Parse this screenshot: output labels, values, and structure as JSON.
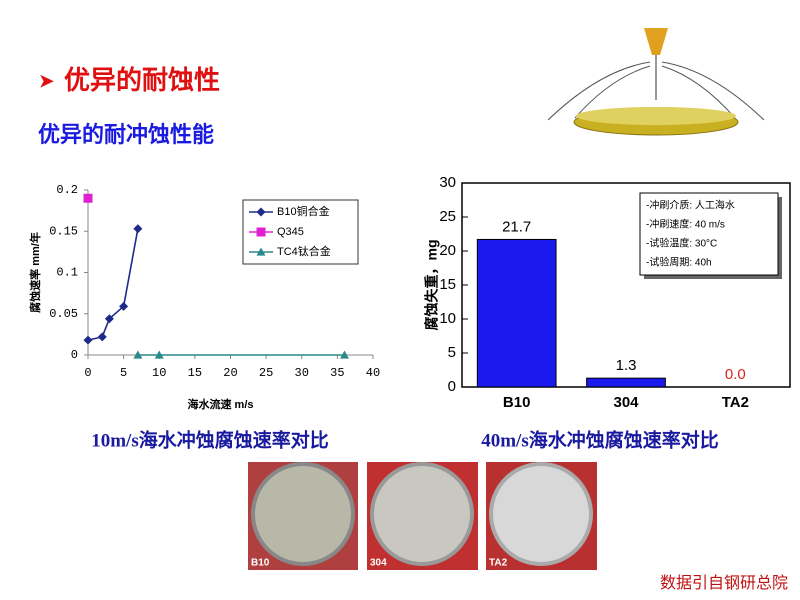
{
  "heading": "优异的耐蚀性",
  "subheading": "优异的耐冲蚀性能",
  "chart_data": [
    {
      "type": "line",
      "xlabel": "海水流速 m/s",
      "ylabel": "腐蚀速率 mm/年",
      "xlim": [
        0,
        40
      ],
      "xticks": [
        0,
        5,
        10,
        15,
        20,
        25,
        30,
        35,
        40
      ],
      "ylim": [
        0,
        0.2
      ],
      "yticks": [
        0,
        0.05,
        0.1,
        0.15,
        0.2
      ],
      "legend": "upper right",
      "series": [
        {
          "name": "B10铜合金",
          "color": "#1f2a8a",
          "marker": "diamond",
          "x": [
            0,
            2,
            3,
            5,
            7
          ],
          "values": [
            0.018,
            0.022,
            0.044,
            0.059,
            0.153
          ]
        },
        {
          "name": "Q345",
          "color": "#e020d0",
          "marker": "square",
          "x": [
            0
          ],
          "values": [
            0.19
          ]
        },
        {
          "name": "TC4钛合金",
          "color": "#2a8a8a",
          "marker": "triangle",
          "x": [
            7,
            10,
            36
          ],
          "values": [
            0,
            0,
            0
          ]
        }
      ]
    },
    {
      "type": "bar",
      "ylabel": "腐蚀失重，mg",
      "categories": [
        "B10",
        "304",
        "TA2"
      ],
      "values": [
        21.7,
        1.3,
        0.0
      ],
      "value_labels": [
        "21.7",
        "1.3",
        "0.0"
      ],
      "value_label_colors": [
        "#000000",
        "#000000",
        "#e02020"
      ],
      "color": "#1a1aee",
      "ylim": [
        0,
        30
      ],
      "yticks": [
        0,
        5,
        10,
        15,
        20,
        25,
        30
      ],
      "annotation": [
        "-冲刷介质: 人工海水",
        "-冲刷速度: 40 m/s",
        "-试验温度: 30°C",
        "-试验周期: 40h"
      ]
    }
  ],
  "captions": [
    "10m/s海水冲蚀腐蚀速率对比",
    "40m/s海水冲蚀腐蚀速率对比"
  ],
  "photo_labels": [
    "B10",
    "304",
    "TA2"
  ],
  "source": "数据引自钢研总院"
}
